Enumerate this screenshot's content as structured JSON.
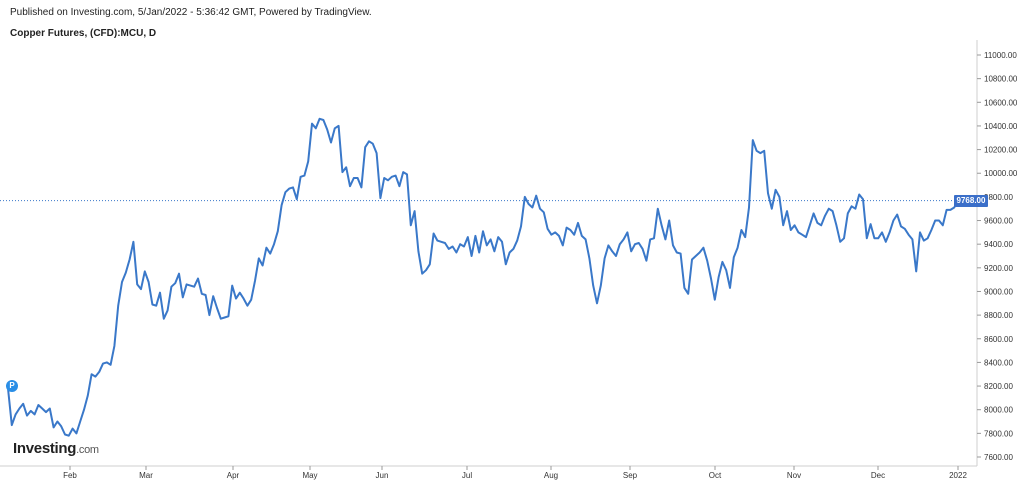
{
  "header": {
    "published": "Published on Investing.com, 5/Jan/2022 - 5:36:42 GMT, Powered by TradingView.",
    "symbol": "Copper Futures, (CFD):MCU, D"
  },
  "watermark": {
    "brand": "Investing",
    "suffix": ".com"
  },
  "marker": {
    "label": "P"
  },
  "colors": {
    "line": "#3a78c9",
    "badge": "#3b6fc9",
    "marker": "#2a8ee6"
  },
  "chart_data": {
    "type": "line",
    "title": "Copper Futures, (CFD):MCU, D",
    "xlabel": "",
    "ylabel": "",
    "ylim": [
      7500,
      11100
    ],
    "grid": false,
    "last_price_label": "9768.00",
    "last_value": 9768,
    "y_ticks": [
      "11000.00",
      "10800.00",
      "10600.00",
      "10400.00",
      "10200.00",
      "10000.00",
      "9800.00",
      "9600.00",
      "9400.00",
      "9200.00",
      "9000.00",
      "8800.00",
      "8600.00",
      "8400.00",
      "8200.00",
      "8000.00",
      "7800.00",
      "7600.00"
    ],
    "x_ticks": [
      "Feb",
      "Mar",
      "Apr",
      "May",
      "Jun",
      "Jul",
      "Aug",
      "Sep",
      "Oct",
      "Nov",
      "Dec",
      "2022"
    ],
    "series": [
      {
        "values": [
          8180,
          7870,
          7960,
          8010,
          8050,
          7950,
          7990,
          7960,
          8040,
          8010,
          7980,
          8010,
          7850,
          7900,
          7860,
          7790,
          7780,
          7840,
          7800,
          7900,
          8000,
          8120,
          8300,
          8280,
          8320,
          8390,
          8400,
          8380,
          8540,
          8880,
          9080,
          9160,
          9270,
          9420,
          9060,
          9020,
          9170,
          9080,
          8890,
          8880,
          8990,
          8770,
          8840,
          9040,
          9070,
          9150,
          8950,
          9060,
          9050,
          9040,
          9110,
          8980,
          8970,
          8800,
          8960,
          8860,
          8770,
          8780,
          8790,
          9050,
          8940,
          8990,
          8940,
          8880,
          8930,
          9090,
          9280,
          9220,
          9370,
          9320,
          9400,
          9510,
          9730,
          9840,
          9870,
          9880,
          9780,
          9970,
          9980,
          10100,
          10420,
          10380,
          10460,
          10450,
          10370,
          10260,
          10380,
          10400,
          10010,
          10050,
          9890,
          9960,
          9960,
          9880,
          10220,
          10270,
          10250,
          10170,
          9790,
          9960,
          9940,
          9970,
          9980,
          9890,
          10010,
          9990,
          9560,
          9680,
          9340,
          9150,
          9180,
          9230,
          9490,
          9430,
          9420,
          9410,
          9360,
          9380,
          9330,
          9400,
          9380,
          9460,
          9300,
          9470,
          9330,
          9510,
          9390,
          9440,
          9340,
          9460,
          9420,
          9230,
          9330,
          9360,
          9430,
          9550,
          9800,
          9740,
          9710,
          9810,
          9700,
          9670,
          9530,
          9480,
          9500,
          9470,
          9390,
          9540,
          9520,
          9480,
          9580,
          9470,
          9440,
          9280,
          9050,
          8900,
          9050,
          9280,
          9390,
          9340,
          9300,
          9400,
          9440,
          9500,
          9340,
          9400,
          9410,
          9360,
          9260,
          9440,
          9450,
          9700,
          9560,
          9440,
          9600,
          9390,
          9330,
          9320,
          9030,
          8980,
          9270,
          9300,
          9330,
          9370,
          9260,
          9110,
          8930,
          9120,
          9250,
          9180,
          9030,
          9290,
          9370,
          9520,
          9460,
          9710,
          10280,
          10190,
          10170,
          10190,
          9830,
          9700,
          9860,
          9800,
          9560,
          9680,
          9520,
          9560,
          9500,
          9480,
          9460,
          9560,
          9660,
          9580,
          9560,
          9640,
          9700,
          9680,
          9560,
          9420,
          9450,
          9660,
          9720,
          9700,
          9820,
          9780,
          9450,
          9570,
          9450,
          9450,
          9500,
          9420,
          9500,
          9600,
          9650,
          9550,
          9530,
          9480,
          9440,
          9170,
          9500,
          9430,
          9450,
          9520,
          9600,
          9600,
          9560,
          9690,
          9690,
          9710,
          9768
        ]
      }
    ]
  }
}
